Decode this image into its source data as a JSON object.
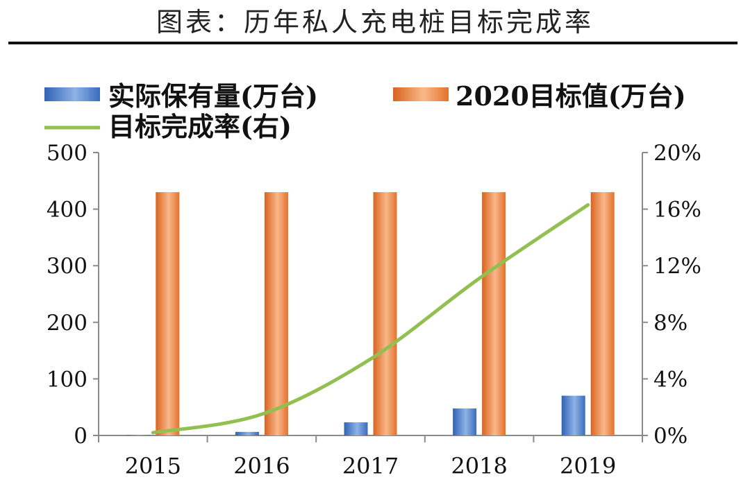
{
  "chart_data": {
    "type": "bar",
    "title": "图表：历年私人充电桩目标完成率",
    "categories": [
      "2015",
      "2016",
      "2017",
      "2018",
      "2019"
    ],
    "series": [
      {
        "name": "实际保有量(万台)",
        "kind": "bar",
        "axis": "left",
        "values": [
          0.8,
          6.3,
          23.2,
          47.7,
          70.3
        ],
        "color": "#4a7cc4"
      },
      {
        "name": "2020目标值(万台)",
        "kind": "bar",
        "axis": "left",
        "values": [
          430,
          430,
          430,
          430,
          430
        ],
        "color": "#e8792e"
      },
      {
        "name": "目标完成率(右)",
        "kind": "line",
        "axis": "right",
        "values": [
          0.2,
          1.5,
          5.4,
          11.1,
          16.3
        ],
        "color": "#92c050"
      }
    ],
    "ylim_left": [
      0,
      500
    ],
    "yticks_left": [
      "0",
      "100",
      "200",
      "300",
      "400",
      "500"
    ],
    "ylim_right": [
      0,
      20
    ],
    "yticks_right": [
      "0%",
      "4%",
      "8%",
      "12%",
      "16%",
      "20%"
    ],
    "legend_position": "top",
    "grid": false
  }
}
